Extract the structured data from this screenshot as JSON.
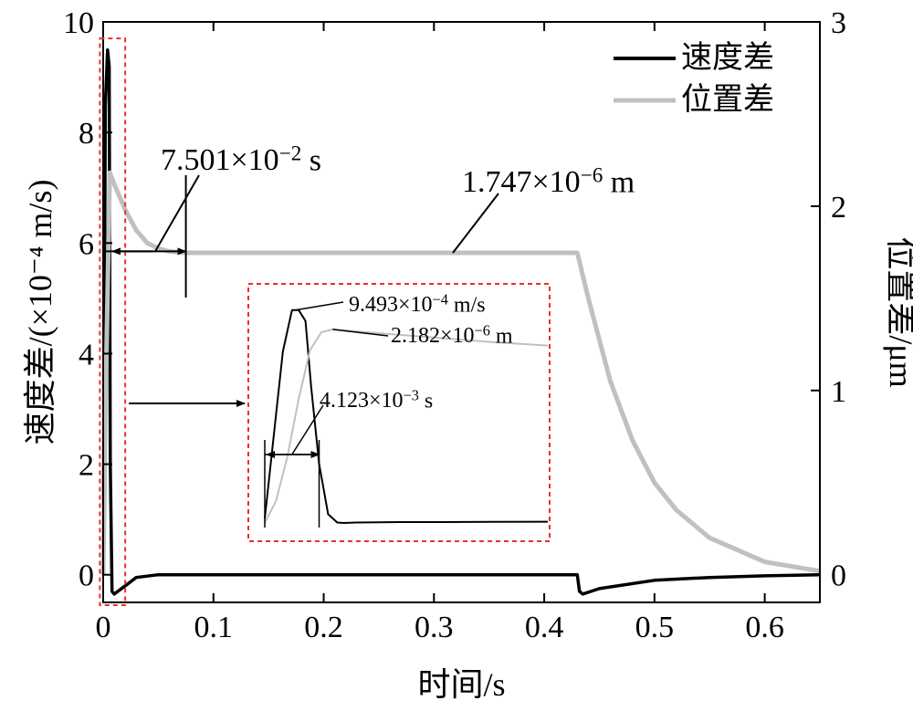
{
  "chart_data": {
    "type": "line",
    "xlabel": "时间/s",
    "ylabel_left": "速度差/(×10⁻⁴ m/s)",
    "ylabel_right": "位置差/μm",
    "xlim": [
      0,
      0.65
    ],
    "ylim_left": [
      -0.5,
      10
    ],
    "ylim_right": [
      -0.15,
      3
    ],
    "x_ticks": [
      0,
      0.1,
      0.2,
      0.3,
      0.4,
      0.5,
      0.6
    ],
    "x_tick_labels": [
      "0",
      "0.1",
      "0.2",
      "0.3",
      "0.4",
      "0.5",
      "0.6"
    ],
    "y_left_ticks": [
      0,
      2,
      4,
      6,
      8,
      10
    ],
    "y_left_tick_labels": [
      "0",
      "2",
      "4",
      "6",
      "8",
      "10"
    ],
    "y_right_ticks": [
      0,
      1,
      2,
      3
    ],
    "y_right_tick_labels": [
      "0",
      "1",
      "2",
      "3"
    ],
    "legend": {
      "position": "top-right",
      "entries": [
        "速度差",
        "位置差"
      ]
    },
    "series": [
      {
        "name": "速度差",
        "axis": "left",
        "color": "#000000",
        "x": [
          0,
          0.002,
          0.004,
          0.0055,
          0.0065,
          0.008,
          0.01,
          0.02,
          0.03,
          0.05,
          0.1,
          0.2,
          0.3,
          0.43,
          0.432,
          0.435,
          0.45,
          0.5,
          0.55,
          0.6,
          0.65
        ],
        "y": [
          0.0,
          8.5,
          9.493,
          9.2,
          2.0,
          -0.3,
          -0.35,
          -0.2,
          -0.05,
          0.0,
          0.0,
          0.0,
          0.0,
          0.0,
          -0.3,
          -0.35,
          -0.25,
          -0.1,
          -0.05,
          -0.02,
          0.0
        ]
      },
      {
        "name": "位置差",
        "axis": "right",
        "color": "#c0c0c0",
        "x": [
          0,
          0.003,
          0.006,
          0.01,
          0.02,
          0.03,
          0.04,
          0.05,
          0.06,
          0.075,
          0.1,
          0.2,
          0.3,
          0.43,
          0.44,
          0.46,
          0.48,
          0.5,
          0.52,
          0.55,
          0.6,
          0.65
        ],
        "y": [
          0.0,
          1.2,
          2.182,
          2.12,
          1.98,
          1.87,
          1.8,
          1.77,
          1.755,
          1.747,
          1.747,
          1.747,
          1.747,
          1.747,
          1.5,
          1.05,
          0.73,
          0.5,
          0.35,
          0.2,
          0.07,
          0.02
        ]
      }
    ],
    "annotations": [
      {
        "id": "settle_time",
        "text": "7.501×10⁻² s"
      },
      {
        "id": "steady_pos",
        "text": "1.747×10⁻⁶ m"
      }
    ],
    "inset": {
      "border_color": "#e8302f",
      "series": [
        {
          "name": "速度差",
          "color": "#000000",
          "x": [
            0,
            0.0008,
            0.0016,
            0.0024,
            0.003,
            0.0036,
            0.0041,
            0.0048,
            0.0056,
            0.0064,
            0.007,
            0.008,
            0.01,
            0.012,
            0.016,
            0.02,
            0.025
          ],
          "y": [
            0.0,
            3.8,
            7.6,
            9.493,
            9.493,
            9.0,
            6.0,
            2.5,
            0.2,
            -0.18,
            -0.2,
            -0.18,
            -0.17,
            -0.16,
            -0.16,
            -0.15,
            -0.14
          ]
        },
        {
          "name": "位置差",
          "color": "#c0c0c0",
          "x": [
            0,
            0.001,
            0.002,
            0.003,
            0.004,
            0.005,
            0.006,
            0.008,
            0.01,
            0.015,
            0.02,
            0.025
          ],
          "y": [
            0.0,
            0.25,
            0.75,
            1.4,
            1.95,
            2.15,
            2.182,
            2.16,
            2.14,
            2.09,
            2.04,
            2.0
          ]
        }
      ],
      "annotations": [
        {
          "id": "peak_vel",
          "text": "9.493×10⁻⁴ m/s"
        },
        {
          "id": "peak_pos",
          "text": "2.182×10⁻⁶ m"
        },
        {
          "id": "peak_time",
          "text": "4.123×10⁻³ s"
        }
      ]
    }
  }
}
